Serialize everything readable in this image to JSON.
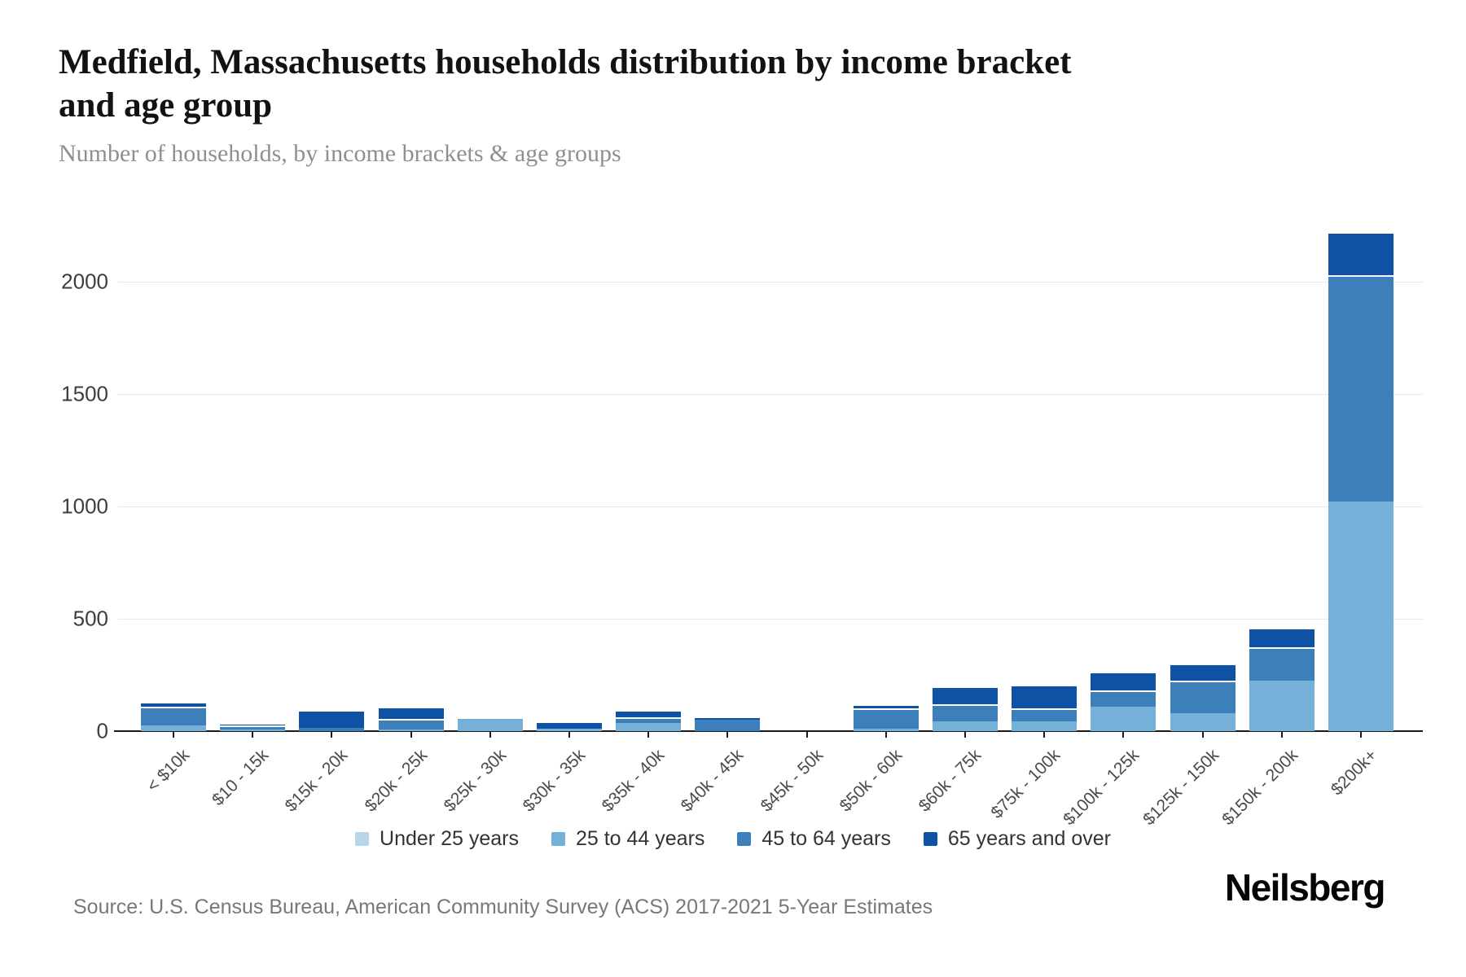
{
  "header": {
    "title_line1": "Medfield, Massachusetts households distribution by income bracket",
    "title_line2": "and age group",
    "subtitle": "Number of households, by income brackets & age groups"
  },
  "chart_data": {
    "type": "bar",
    "stacked": true,
    "title": "Medfield, Massachusetts households distribution by income bracket and age group",
    "subtitle": "Number of households, by income brackets & age groups",
    "categories": [
      "< $10k",
      "$10 - 15k",
      "$15k - 20k",
      "$20k - 25k",
      "$25k - 30k",
      "$30k - 35k",
      "$35k - 40k",
      "$40k - 45k",
      "$45k - 50k",
      "$50k - 60k",
      "$60k - 75k",
      "$75k - 100k",
      "$100k - 125k",
      "$125k - 150k",
      "$150k - 200k",
      "$200k+"
    ],
    "series": [
      {
        "name": "Under 25 years",
        "color": "#b9d5ea",
        "values": [
          0,
          0,
          0,
          0,
          0,
          0,
          0,
          0,
          0,
          0,
          0,
          0,
          0,
          0,
          0,
          0
        ]
      },
      {
        "name": "25 to 44 years",
        "color": "#74b0d8",
        "values": [
          25,
          8,
          0,
          8,
          55,
          12,
          36,
          0,
          0,
          12,
          45,
          45,
          110,
          80,
          225,
          1020
        ]
      },
      {
        "name": "45 to 64 years",
        "color": "#3d7fba",
        "values": [
          85,
          19,
          15,
          45,
          0,
          0,
          25,
          52,
          0,
          90,
          75,
          55,
          70,
          145,
          150,
          1010
        ]
      },
      {
        "name": "65 years and over",
        "color": "#0d52a5",
        "values": [
          20,
          8,
          80,
          55,
          0,
          32,
          32,
          15,
          0,
          18,
          80,
          105,
          85,
          75,
          85,
          190
        ]
      }
    ],
    "xlabel": "",
    "ylabel": "",
    "ylim": [
      0,
      2300
    ],
    "yticks": [
      0,
      500,
      1000,
      1500,
      2000
    ],
    "grid": "horizontal",
    "legend_position": "bottom"
  },
  "footer": {
    "source": "Source: U.S. Census Bureau, American Community Survey (ACS) 2017-2021 5-Year Estimates",
    "brand": "Neilsberg"
  }
}
